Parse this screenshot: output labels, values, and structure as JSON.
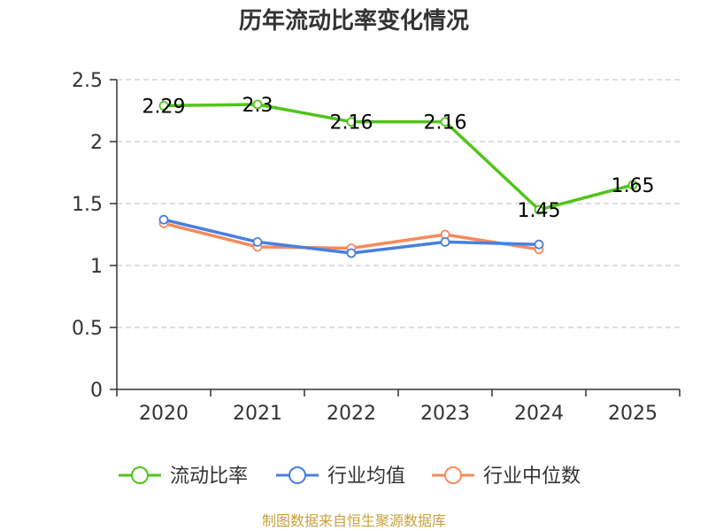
{
  "colors": {
    "current_ratio": "#52c41a",
    "industry_avg": "#4a7fe0",
    "industry_median": "#f58b5c",
    "axis": "#333333",
    "grid": "#cccccc",
    "source": "#c8a13c"
  },
  "footer": {
    "source": "制图数据来自恒生聚源数据库"
  },
  "chart_data": {
    "type": "line",
    "title": "历年流动比率变化情况",
    "categories": [
      "2020",
      "2021",
      "2022",
      "2023",
      "2024",
      "2025"
    ],
    "y_ticks": [
      "0",
      "0.5",
      "1",
      "1.5",
      "2",
      "2.5"
    ],
    "ylim": [
      0,
      2.5
    ],
    "grid": true,
    "legend_position": "bottom",
    "series": [
      {
        "name": "流动比率",
        "values": [
          2.29,
          2.3,
          2.16,
          2.16,
          1.45,
          1.65
        ],
        "labels": [
          "2.29",
          "2.3",
          "2.16",
          "2.16",
          "1.45",
          "1.65"
        ]
      },
      {
        "name": "行业均值",
        "values": [
          1.37,
          1.19,
          1.1,
          1.19,
          1.17,
          null
        ]
      },
      {
        "name": "行业中位数",
        "values": [
          1.34,
          1.15,
          1.14,
          1.25,
          1.13,
          null
        ]
      }
    ]
  }
}
